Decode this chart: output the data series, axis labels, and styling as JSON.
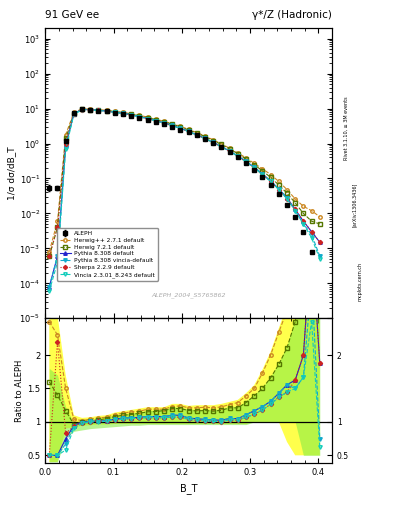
{
  "title_left": "91 GeV ee",
  "title_right": "γ*/Z (Hadronic)",
  "xlabel": "B_T",
  "ylabel_main": "1/σ dσ/dB_T",
  "ylabel_ratio": "Ratio to ALEPH",
  "watermark": "ALEPH_2004_S5765862",
  "right_label_top": "Rivet 3.1.10, ≥ 3M events",
  "right_label_mid": "[arXiv:1306.3436]",
  "right_label_bot": "mcplots.cern.ch",
  "xlim": [
    0.0,
    0.42
  ],
  "ylim_main": [
    1e-05,
    2000
  ],
  "ylim_ratio": [
    0.4,
    2.55
  ],
  "aleph_x": [
    0.006,
    0.018,
    0.03,
    0.042,
    0.054,
    0.066,
    0.078,
    0.09,
    0.102,
    0.114,
    0.126,
    0.138,
    0.15,
    0.162,
    0.174,
    0.186,
    0.198,
    0.21,
    0.222,
    0.234,
    0.246,
    0.258,
    0.27,
    0.282,
    0.294,
    0.306,
    0.318,
    0.33,
    0.342,
    0.354,
    0.366,
    0.378,
    0.39
  ],
  "aleph_y": [
    0.055,
    0.055,
    1.2,
    7.5,
    9.5,
    9.2,
    8.8,
    8.3,
    7.6,
    6.9,
    6.2,
    5.5,
    4.8,
    4.2,
    3.6,
    3.0,
    2.5,
    2.1,
    1.7,
    1.35,
    1.05,
    0.8,
    0.58,
    0.42,
    0.28,
    0.18,
    0.11,
    0.065,
    0.035,
    0.018,
    0.008,
    0.003,
    0.0008
  ],
  "aleph_yerr": [
    0.01,
    0.008,
    0.12,
    0.25,
    0.25,
    0.22,
    0.2,
    0.18,
    0.16,
    0.14,
    0.12,
    0.1,
    0.09,
    0.08,
    0.07,
    0.06,
    0.05,
    0.04,
    0.03,
    0.025,
    0.02,
    0.015,
    0.012,
    0.009,
    0.006,
    0.004,
    0.003,
    0.002,
    0.001,
    0.0005,
    0.0003,
    0.0001,
    4e-05
  ],
  "cpp_x": [
    0.006,
    0.018,
    0.03,
    0.042,
    0.054,
    0.066,
    0.078,
    0.09,
    0.102,
    0.114,
    0.126,
    0.138,
    0.15,
    0.162,
    0.174,
    0.186,
    0.198,
    0.21,
    0.222,
    0.234,
    0.246,
    0.258,
    0.27,
    0.282,
    0.294,
    0.306,
    0.318,
    0.33,
    0.342,
    0.354,
    0.366,
    0.378,
    0.39,
    0.402
  ],
  "cpp_y": [
    0.0008,
    0.006,
    1.8,
    7.8,
    9.8,
    9.6,
    9.3,
    8.9,
    8.4,
    7.8,
    7.1,
    6.4,
    5.7,
    5.0,
    4.3,
    3.7,
    3.1,
    2.55,
    2.05,
    1.65,
    1.27,
    0.98,
    0.73,
    0.54,
    0.39,
    0.27,
    0.19,
    0.13,
    0.082,
    0.048,
    0.026,
    0.016,
    0.012,
    0.008
  ],
  "h72_x": [
    0.006,
    0.018,
    0.03,
    0.042,
    0.054,
    0.066,
    0.078,
    0.09,
    0.102,
    0.114,
    0.126,
    0.138,
    0.15,
    0.162,
    0.174,
    0.186,
    0.198,
    0.21,
    0.222,
    0.234,
    0.246,
    0.258,
    0.27,
    0.282,
    0.294,
    0.306,
    0.318,
    0.33,
    0.342,
    0.354,
    0.366,
    0.378,
    0.39,
    0.402
  ],
  "h72_y": [
    0.0006,
    0.004,
    1.4,
    7.2,
    9.5,
    9.4,
    9.1,
    8.7,
    8.2,
    7.6,
    6.9,
    6.2,
    5.5,
    4.85,
    4.2,
    3.6,
    3.0,
    2.45,
    1.98,
    1.58,
    1.22,
    0.94,
    0.7,
    0.51,
    0.36,
    0.25,
    0.165,
    0.108,
    0.065,
    0.038,
    0.02,
    0.01,
    0.006,
    0.005
  ],
  "py_x": [
    0.006,
    0.018,
    0.03,
    0.042,
    0.054,
    0.066,
    0.078,
    0.09,
    0.102,
    0.114,
    0.126,
    0.138,
    0.15,
    0.162,
    0.174,
    0.186,
    0.198,
    0.21,
    0.222,
    0.234,
    0.246,
    0.258,
    0.27,
    0.282,
    0.294,
    0.306,
    0.318,
    0.33,
    0.342,
    0.354,
    0.366,
    0.378,
    0.39,
    0.402
  ],
  "py_y": [
    8e-05,
    0.0006,
    0.9,
    7.1,
    9.5,
    9.3,
    8.9,
    8.5,
    7.9,
    7.3,
    6.6,
    5.9,
    5.2,
    4.55,
    3.9,
    3.3,
    2.75,
    2.22,
    1.78,
    1.4,
    1.08,
    0.82,
    0.61,
    0.44,
    0.31,
    0.21,
    0.135,
    0.085,
    0.05,
    0.028,
    0.013,
    0.006,
    0.003,
    0.0015
  ],
  "pyv_x": [
    0.006,
    0.018,
    0.03,
    0.042,
    0.054,
    0.066,
    0.078,
    0.09,
    0.102,
    0.114,
    0.126,
    0.138,
    0.15,
    0.162,
    0.174,
    0.186,
    0.198,
    0.21,
    0.222,
    0.234,
    0.246,
    0.258,
    0.27,
    0.282,
    0.294,
    0.306,
    0.318,
    0.33,
    0.342,
    0.354,
    0.366,
    0.378,
    0.39,
    0.402
  ],
  "pyv_y": [
    8e-05,
    0.0006,
    0.8,
    7.0,
    9.4,
    9.3,
    8.9,
    8.5,
    7.9,
    7.3,
    6.6,
    5.9,
    5.2,
    4.55,
    3.9,
    3.3,
    2.75,
    2.22,
    1.78,
    1.4,
    1.08,
    0.82,
    0.61,
    0.44,
    0.31,
    0.21,
    0.135,
    0.085,
    0.05,
    0.028,
    0.012,
    0.005,
    0.0025,
    0.0006
  ],
  "sh_x": [
    0.006,
    0.018,
    0.03,
    0.042,
    0.054,
    0.066,
    0.078,
    0.09,
    0.102,
    0.114,
    0.126,
    0.138,
    0.15,
    0.162,
    0.174,
    0.186,
    0.198,
    0.21,
    0.222,
    0.234,
    0.246,
    0.258,
    0.27,
    0.282,
    0.294,
    0.306,
    0.318,
    0.33,
    0.342,
    0.354,
    0.366,
    0.378,
    0.39,
    0.402
  ],
  "sh_y": [
    0.0006,
    0.004,
    1.0,
    7.0,
    9.4,
    9.2,
    8.9,
    8.4,
    7.8,
    7.2,
    6.5,
    5.8,
    5.1,
    4.45,
    3.82,
    3.22,
    2.68,
    2.18,
    1.74,
    1.37,
    1.06,
    0.8,
    0.6,
    0.43,
    0.3,
    0.2,
    0.13,
    0.082,
    0.048,
    0.026,
    0.013,
    0.006,
    0.003,
    0.0015
  ],
  "vi_x": [
    0.006,
    0.018,
    0.03,
    0.042,
    0.054,
    0.066,
    0.078,
    0.09,
    0.102,
    0.114,
    0.126,
    0.138,
    0.15,
    0.162,
    0.174,
    0.186,
    0.198,
    0.21,
    0.222,
    0.234,
    0.246,
    0.258,
    0.27,
    0.282,
    0.294,
    0.306,
    0.318,
    0.33,
    0.342,
    0.354,
    0.366,
    0.378,
    0.39,
    0.402
  ],
  "vi_y": [
    6e-05,
    0.0004,
    0.7,
    6.8,
    9.3,
    9.2,
    8.8,
    8.4,
    7.8,
    7.2,
    6.5,
    5.8,
    5.1,
    4.45,
    3.82,
    3.22,
    2.68,
    2.18,
    1.74,
    1.37,
    1.06,
    0.8,
    0.6,
    0.43,
    0.3,
    0.2,
    0.13,
    0.082,
    0.048,
    0.026,
    0.012,
    0.005,
    0.002,
    0.0005
  ],
  "cpp_color": "#cc8822",
  "h72_color": "#557700",
  "py_color": "#2222cc",
  "pyv_color": "#11aacc",
  "sh_color": "#cc2222",
  "vi_color": "#11ccbb",
  "al_color": "#000000",
  "legend_entries": [
    "ALEPH",
    "Herwig++ 2.7.1 default",
    "Herwig 7.2.1 default",
    "Pythia 8.308 default",
    "Pythia 8.308 vincia-default",
    "Sherpa 2.2.9 default",
    "Vincia 2.3.01_8.243 default"
  ],
  "cpp_ratio": [
    2.5,
    2.3,
    1.5,
    1.04,
    1.02,
    1.04,
    1.06,
    1.07,
    1.11,
    1.13,
    1.15,
    1.16,
    1.19,
    1.19,
    1.19,
    1.23,
    1.24,
    1.21,
    1.21,
    1.22,
    1.21,
    1.225,
    1.26,
    1.29,
    1.39,
    1.5,
    1.73,
    2.0,
    2.34,
    2.67,
    3.25,
    5.33,
    15.0,
    10.0
  ],
  "h72_ratio": [
    1.6,
    1.4,
    1.17,
    0.96,
    1.0,
    1.02,
    1.03,
    1.05,
    1.08,
    1.1,
    1.11,
    1.13,
    1.15,
    1.155,
    1.17,
    1.2,
    1.2,
    1.17,
    1.165,
    1.17,
    1.16,
    1.175,
    1.21,
    1.21,
    1.29,
    1.39,
    1.5,
    1.66,
    1.86,
    2.11,
    2.5,
    3.33,
    7.5,
    6.25
  ],
  "py_ratio": [
    0.5,
    0.5,
    0.75,
    0.945,
    1.0,
    1.01,
    1.01,
    1.02,
    1.04,
    1.06,
    1.06,
    1.07,
    1.08,
    1.08,
    1.08,
    1.1,
    1.1,
    1.057,
    1.047,
    1.037,
    1.029,
    1.025,
    1.052,
    1.048,
    1.107,
    1.167,
    1.227,
    1.308,
    1.429,
    1.556,
    1.625,
    2.0,
    3.75,
    1.875
  ],
  "pyv_ratio": [
    0.5,
    0.5,
    0.67,
    0.933,
    0.989,
    1.01,
    1.01,
    1.02,
    1.04,
    1.06,
    1.06,
    1.07,
    1.08,
    1.08,
    1.08,
    1.1,
    1.1,
    1.057,
    1.047,
    1.037,
    1.029,
    1.025,
    1.052,
    1.048,
    1.107,
    1.167,
    1.227,
    1.308,
    1.429,
    1.556,
    1.5,
    1.67,
    3.125,
    0.75
  ],
  "sh_ratio": [
    0.5,
    2.2,
    0.83,
    0.933,
    0.989,
    1.0,
    1.01,
    1.01,
    1.03,
    1.04,
    1.05,
    1.055,
    1.063,
    1.06,
    1.061,
    1.073,
    1.072,
    1.038,
    1.024,
    1.015,
    1.01,
    1.0,
    1.034,
    1.024,
    1.071,
    1.111,
    1.182,
    1.262,
    1.371,
    1.444,
    1.625,
    2.0,
    3.75,
    1.875
  ],
  "vi_ratio": [
    0.5,
    0.5,
    0.58,
    0.907,
    0.979,
    1.0,
    1.0,
    1.01,
    1.03,
    1.04,
    1.05,
    1.055,
    1.063,
    1.06,
    1.061,
    1.073,
    1.072,
    1.038,
    1.024,
    1.015,
    1.01,
    1.0,
    1.034,
    1.024,
    1.071,
    1.111,
    1.182,
    1.262,
    1.371,
    1.444,
    1.5,
    1.67,
    2.5,
    0.625
  ],
  "yellow_band_lo": [
    0.4,
    0.4,
    0.9,
    0.92,
    0.94,
    0.95,
    0.96,
    0.96,
    0.97,
    0.97,
    0.97,
    0.97,
    0.97,
    0.97,
    0.97,
    0.97,
    0.97,
    0.97,
    0.97,
    0.97,
    0.97,
    0.97,
    0.97,
    0.97,
    0.97,
    1.0,
    1.0,
    1.0,
    1.0,
    0.7,
    0.5,
    0.5,
    0.5,
    0.5
  ],
  "yellow_band_hi": [
    2.6,
    2.6,
    1.7,
    1.1,
    1.06,
    1.07,
    1.09,
    1.1,
    1.14,
    1.16,
    1.18,
    1.2,
    1.22,
    1.22,
    1.22,
    1.27,
    1.27,
    1.24,
    1.25,
    1.25,
    1.25,
    1.27,
    1.3,
    1.33,
    1.43,
    1.55,
    1.78,
    2.05,
    2.4,
    2.75,
    3.5,
    5.5,
    15.0,
    10.0
  ],
  "green_band_lo": [
    0.4,
    0.4,
    0.76,
    0.86,
    0.88,
    0.9,
    0.91,
    0.92,
    0.93,
    0.94,
    0.95,
    0.95,
    0.96,
    0.96,
    0.96,
    0.96,
    0.96,
    0.96,
    0.96,
    0.96,
    0.96,
    0.96,
    0.96,
    0.96,
    0.96,
    1.0,
    1.0,
    1.0,
    1.0,
    1.0,
    1.0,
    0.5,
    0.5,
    0.5
  ],
  "green_band_hi": [
    1.8,
    1.7,
    1.22,
    0.98,
    1.02,
    1.04,
    1.05,
    1.07,
    1.1,
    1.12,
    1.13,
    1.15,
    1.17,
    1.175,
    1.19,
    1.22,
    1.22,
    1.19,
    1.185,
    1.19,
    1.18,
    1.195,
    1.23,
    1.23,
    1.31,
    1.41,
    1.52,
    1.68,
    1.89,
    2.14,
    2.56,
    3.5,
    7.8,
    6.5
  ]
}
